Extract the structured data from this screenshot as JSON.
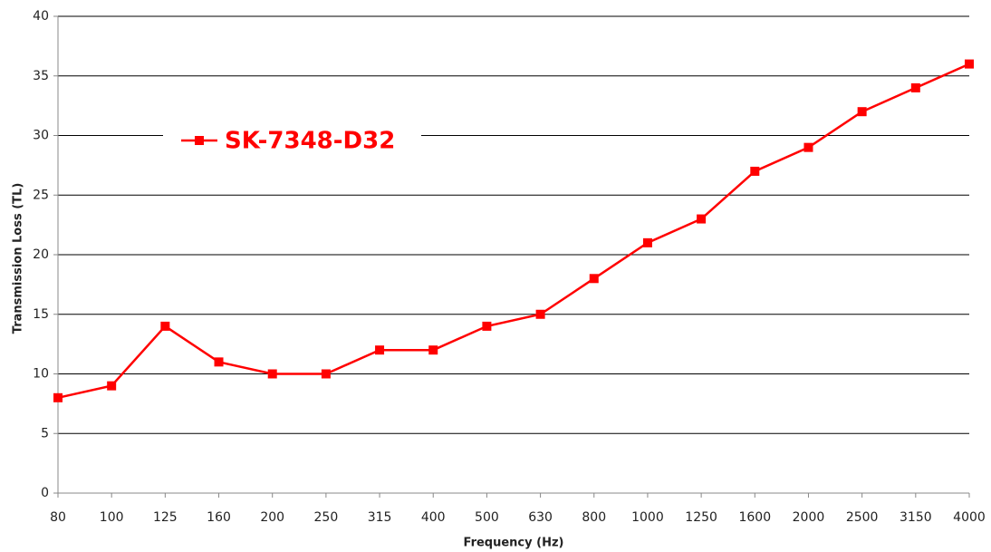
{
  "chart_data": {
    "type": "line",
    "xlabel": "Frequency (Hz)",
    "ylabel": "Transmission Loss (TL)",
    "categories": [
      "80",
      "100",
      "125",
      "160",
      "200",
      "250",
      "315",
      "400",
      "500",
      "630",
      "800",
      "1000",
      "1250",
      "1600",
      "2000",
      "2500",
      "3150",
      "4000"
    ],
    "series": [
      {
        "name": "SK-7348-D32",
        "color": "#ff0000",
        "values": [
          8,
          9,
          14,
          11,
          10,
          10,
          12,
          12,
          14,
          15,
          18,
          21,
          23,
          27,
          29,
          32,
          34,
          36
        ]
      }
    ],
    "ylim": [
      0,
      40
    ],
    "yticks": [
      0,
      5,
      10,
      15,
      20,
      25,
      30,
      35,
      40
    ],
    "grid": true
  }
}
